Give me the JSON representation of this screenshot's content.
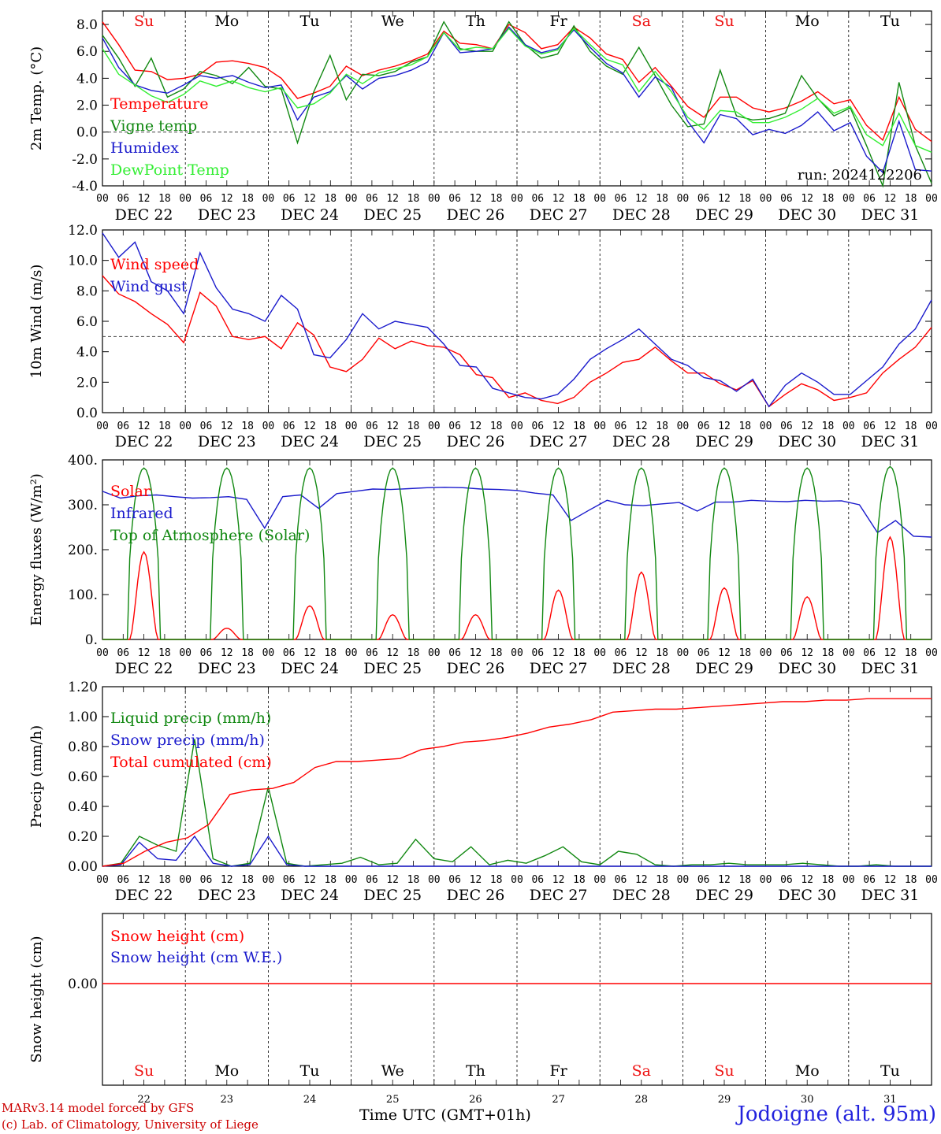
{
  "chart_data": [
    {
      "type": "line",
      "ylabel": "2m Temp. (°C)",
      "ylim": [
        -4,
        9
      ],
      "yticks": [
        "8.0",
        "6.0",
        "4.0",
        "2.0",
        "0.0",
        "-2.0",
        "-4.0"
      ],
      "ytick_values": [
        8,
        6,
        4,
        2,
        0,
        -2,
        -4
      ],
      "reference_line": 0,
      "weekday_labels": [
        "Su",
        "Mo",
        "Tu",
        "We",
        "Th",
        "Fr",
        "Sa",
        "Su",
        "Mo",
        "Tu"
      ],
      "annotation": "run: 2024122206",
      "series": [
        {
          "name": "Temperature",
          "color": "#ff0000",
          "values": [
            8.2,
            6.5,
            4.6,
            4.5,
            3.9,
            4.0,
            4.3,
            5.2,
            5.3,
            5.1,
            4.8,
            4.0,
            2.5,
            2.9,
            3.4,
            4.9,
            4.2,
            4.6,
            4.9,
            5.3,
            5.8,
            7.5,
            6.6,
            6.5,
            6.2,
            8.0,
            7.4,
            6.2,
            6.5,
            7.8,
            7.0,
            5.8,
            5.4,
            3.7,
            4.8,
            3.4,
            1.9,
            1.1,
            2.6,
            2.6,
            1.8,
            1.5,
            1.8,
            2.3,
            3.0,
            2.1,
            2.4,
            0.5,
            -0.6,
            2.6,
            0.2,
            -0.7
          ]
        },
        {
          "name": "Vigne temp",
          "color": "#118811",
          "values": [
            7.2,
            5.5,
            3.4,
            5.5,
            2.6,
            3.2,
            4.5,
            4.2,
            3.6,
            4.8,
            3.4,
            3.2,
            -0.8,
            3.0,
            5.7,
            2.4,
            4.3,
            4.2,
            4.5,
            5.2,
            5.6,
            8.2,
            6.2,
            6.0,
            6.0,
            8.2,
            6.5,
            5.5,
            5.8,
            7.9,
            6.0,
            4.9,
            4.3,
            6.3,
            4.2,
            2.0,
            0.4,
            0.6,
            4.6,
            1.2,
            0.9,
            1.0,
            1.4,
            4.2,
            2.5,
            1.2,
            1.8,
            -1.0,
            -4.0,
            3.7,
            -1.0,
            -3.8
          ]
        },
        {
          "name": "Humidex",
          "color": "#1a1acc",
          "values": [
            7.0,
            4.8,
            3.5,
            3.1,
            2.9,
            3.5,
            4.2,
            4.0,
            4.2,
            3.7,
            3.3,
            3.5,
            0.9,
            2.6,
            3.0,
            4.2,
            3.2,
            4.0,
            4.2,
            4.6,
            5.2,
            7.4,
            5.9,
            6.0,
            6.2,
            7.8,
            6.5,
            5.9,
            6.2,
            7.6,
            6.3,
            5.1,
            4.4,
            2.6,
            4.1,
            3.3,
            0.8,
            -0.8,
            1.3,
            1.0,
            -0.2,
            0.2,
            -0.1,
            0.5,
            1.5,
            0.1,
            0.7,
            -1.8,
            -3.0,
            0.8,
            -2.8,
            -2.9
          ]
        },
        {
          "name": "DewPoint Temp",
          "color": "#33ee33",
          "values": [
            6.2,
            4.3,
            3.5,
            2.7,
            2.2,
            2.8,
            3.8,
            3.4,
            3.8,
            3.3,
            3.0,
            3.3,
            1.8,
            2.1,
            2.9,
            4.3,
            3.6,
            4.4,
            4.7,
            5.0,
            5.6,
            7.4,
            6.1,
            6.3,
            6.2,
            7.7,
            6.4,
            5.8,
            6.1,
            7.7,
            6.5,
            5.4,
            5.0,
            3.0,
            4.5,
            3.0,
            1.1,
            0.2,
            1.6,
            1.5,
            0.7,
            0.7,
            1.1,
            1.7,
            2.5,
            1.4,
            1.9,
            -0.2,
            -1.0,
            1.4,
            -1.0,
            -1.5
          ]
        }
      ],
      "legend_position": "left"
    },
    {
      "type": "line",
      "ylabel": "10m Wind (m/s)",
      "ylim": [
        0,
        12
      ],
      "yticks": [
        "12.0",
        "10.0",
        "8.0",
        "6.0",
        "4.0",
        "2.0",
        "0.0"
      ],
      "ytick_values": [
        12,
        10,
        8,
        6,
        4,
        2,
        0
      ],
      "reference_line": 5,
      "series": [
        {
          "name": "Wind speed",
          "color": "#ff0000",
          "values": [
            9.0,
            7.8,
            7.3,
            6.5,
            5.8,
            4.6,
            7.9,
            7.0,
            5.0,
            4.8,
            5.0,
            4.2,
            5.9,
            5.1,
            3.0,
            2.7,
            3.5,
            4.9,
            4.2,
            4.7,
            4.4,
            4.3,
            3.8,
            2.5,
            2.3,
            1.0,
            1.3,
            0.8,
            0.6,
            1.0,
            2.0,
            2.6,
            3.3,
            3.5,
            4.3,
            3.4,
            2.6,
            2.6,
            1.9,
            1.5,
            2.1,
            0.4,
            1.2,
            1.9,
            1.5,
            0.8,
            1.0,
            1.3,
            2.6,
            3.5,
            4.3,
            5.6
          ]
        },
        {
          "name": "Wind gust",
          "color": "#1a1acc",
          "values": [
            11.8,
            10.2,
            11.2,
            8.6,
            8.0,
            6.5,
            10.5,
            8.2,
            6.8,
            6.5,
            6.0,
            7.7,
            6.8,
            3.8,
            3.6,
            4.8,
            6.5,
            5.5,
            6.0,
            5.8,
            5.6,
            4.5,
            3.1,
            3.0,
            1.6,
            1.3,
            1.0,
            0.9,
            1.2,
            2.2,
            3.5,
            4.2,
            4.8,
            5.5,
            4.5,
            3.5,
            3.1,
            2.3,
            2.1,
            1.4,
            2.2,
            0.4,
            1.8,
            2.6,
            2.0,
            1.2,
            1.2,
            2.1,
            3.0,
            4.5,
            5.5,
            7.4
          ]
        }
      ],
      "legend_position": "left"
    },
    {
      "type": "line",
      "ylabel": "Energy fluxes (W/m²)",
      "ylim": [
        0,
        400
      ],
      "yticks": [
        "400.",
        "300.",
        "200.",
        "100.",
        "0."
      ],
      "ytick_values": [
        400,
        300,
        200,
        100,
        0
      ],
      "series": [
        {
          "name": "Solar",
          "color": "#ff0000",
          "daily_peaks": [
            195,
            25,
            75,
            55,
            55,
            110,
            150,
            115,
            95,
            228
          ]
        },
        {
          "name": "Infrared",
          "color": "#1a1acc",
          "values": [
            330,
            315,
            320,
            322,
            318,
            315,
            316,
            318,
            312,
            248,
            318,
            322,
            292,
            325,
            330,
            335,
            334,
            336,
            338,
            339,
            338,
            335,
            334,
            332,
            326,
            322,
            265,
            288,
            310,
            300,
            298,
            302,
            305,
            286,
            306,
            306,
            310,
            308,
            307,
            310,
            308,
            309,
            300,
            238,
            265,
            230,
            228
          ]
        },
        {
          "name": "Top of Atmosphere (Solar)",
          "color": "#118811",
          "daily_peaks": [
            382,
            382,
            382,
            382,
            382,
            382,
            382,
            382,
            382,
            385
          ]
        }
      ],
      "legend_position": "left"
    },
    {
      "type": "line",
      "ylabel": "Precip (mm/h)",
      "ylim": [
        0,
        1.2
      ],
      "yticks": [
        "1.20",
        "1.00",
        "0.80",
        "0.60",
        "0.40",
        "0.20",
        "0.00"
      ],
      "ytick_values": [
        1.2,
        1.0,
        0.8,
        0.6,
        0.4,
        0.2,
        0.0
      ],
      "series": [
        {
          "name": "Liquid precip (mm/h)",
          "color": "#118811",
          "values": [
            0.0,
            0.02,
            0.2,
            0.14,
            0.1,
            0.85,
            0.05,
            0.0,
            0.02,
            0.53,
            0.02,
            0.0,
            0.01,
            0.02,
            0.06,
            0.01,
            0.02,
            0.18,
            0.05,
            0.03,
            0.13,
            0.01,
            0.04,
            0.02,
            0.07,
            0.13,
            0.03,
            0.01,
            0.1,
            0.08,
            0.01,
            0.0,
            0.01,
            0.01,
            0.02,
            0.01,
            0.01,
            0.01,
            0.02,
            0.01,
            0.0,
            0.0,
            0.01,
            0.0,
            0.0,
            0.0
          ]
        },
        {
          "name": "Snow precip (mm/h)",
          "color": "#1a1acc",
          "values": [
            0.0,
            0.01,
            0.16,
            0.05,
            0.04,
            0.2,
            0.02,
            0.0,
            0.01,
            0.2,
            0.01,
            0.0,
            0.0,
            0.0,
            0.0,
            0.0,
            0.0,
            0.0,
            0.0,
            0.0,
            0.0,
            0.0,
            0.0,
            0.0,
            0.0,
            0.0,
            0.0,
            0.0,
            0.0,
            0.0,
            0.0,
            0.0,
            0.0,
            0.0,
            0.0,
            0.0,
            0.0,
            0.0,
            0.0,
            0.0,
            0.0,
            0.0,
            0.0,
            0.0,
            0.0,
            0.0
          ]
        },
        {
          "name": "Total cumulated (cm)",
          "color": "#ff0000",
          "values": [
            0.0,
            0.02,
            0.1,
            0.16,
            0.19,
            0.28,
            0.48,
            0.51,
            0.52,
            0.56,
            0.66,
            0.7,
            0.7,
            0.71,
            0.72,
            0.78,
            0.8,
            0.83,
            0.84,
            0.86,
            0.89,
            0.93,
            0.95,
            0.98,
            1.03,
            1.04,
            1.05,
            1.05,
            1.06,
            1.07,
            1.08,
            1.09,
            1.1,
            1.1,
            1.11,
            1.11,
            1.12,
            1.12,
            1.12,
            1.12
          ]
        }
      ],
      "legend_position": "left"
    },
    {
      "type": "line",
      "ylabel": "Snow height (cm)",
      "yticks": [
        "0.00"
      ],
      "series": [
        {
          "name": "Snow height (cm)",
          "color": "#ff0000",
          "values": [
            0,
            0
          ]
        },
        {
          "name": "Snow height (cm W.E.)",
          "color": "#1a1acc",
          "values": []
        }
      ],
      "day_numbers": [
        "22",
        "23",
        "24",
        "25",
        "26",
        "27",
        "28",
        "29",
        "30",
        "31"
      ],
      "weekday_labels": [
        "Su",
        "Mo",
        "Tu",
        "We",
        "Th",
        "Fr",
        "Sa",
        "Su",
        "Mo",
        "Tu"
      ],
      "legend_position": "top-left"
    }
  ],
  "x_axis": {
    "hour_ticks": [
      "00",
      "06",
      "12",
      "18"
    ],
    "final_tick": "00",
    "date_labels": [
      "DEC 22",
      "DEC 23",
      "DEC 24",
      "DEC 25",
      "DEC 26",
      "DEC 27",
      "DEC 28",
      "DEC 29",
      "DEC 30",
      "DEC 31"
    ],
    "weekend_color": "#ee1111",
    "weekday_color": "#000000",
    "weekend_days": [
      0,
      6,
      7
    ]
  },
  "footer": {
    "model_line": "MARv3.14 model forced by GFS",
    "credit_line": "(c) Lab. of Climatology, University of Liege",
    "time_axis_label": "Time UTC (GMT+01h)",
    "station_label": "Jodoigne (alt. 95m)"
  }
}
